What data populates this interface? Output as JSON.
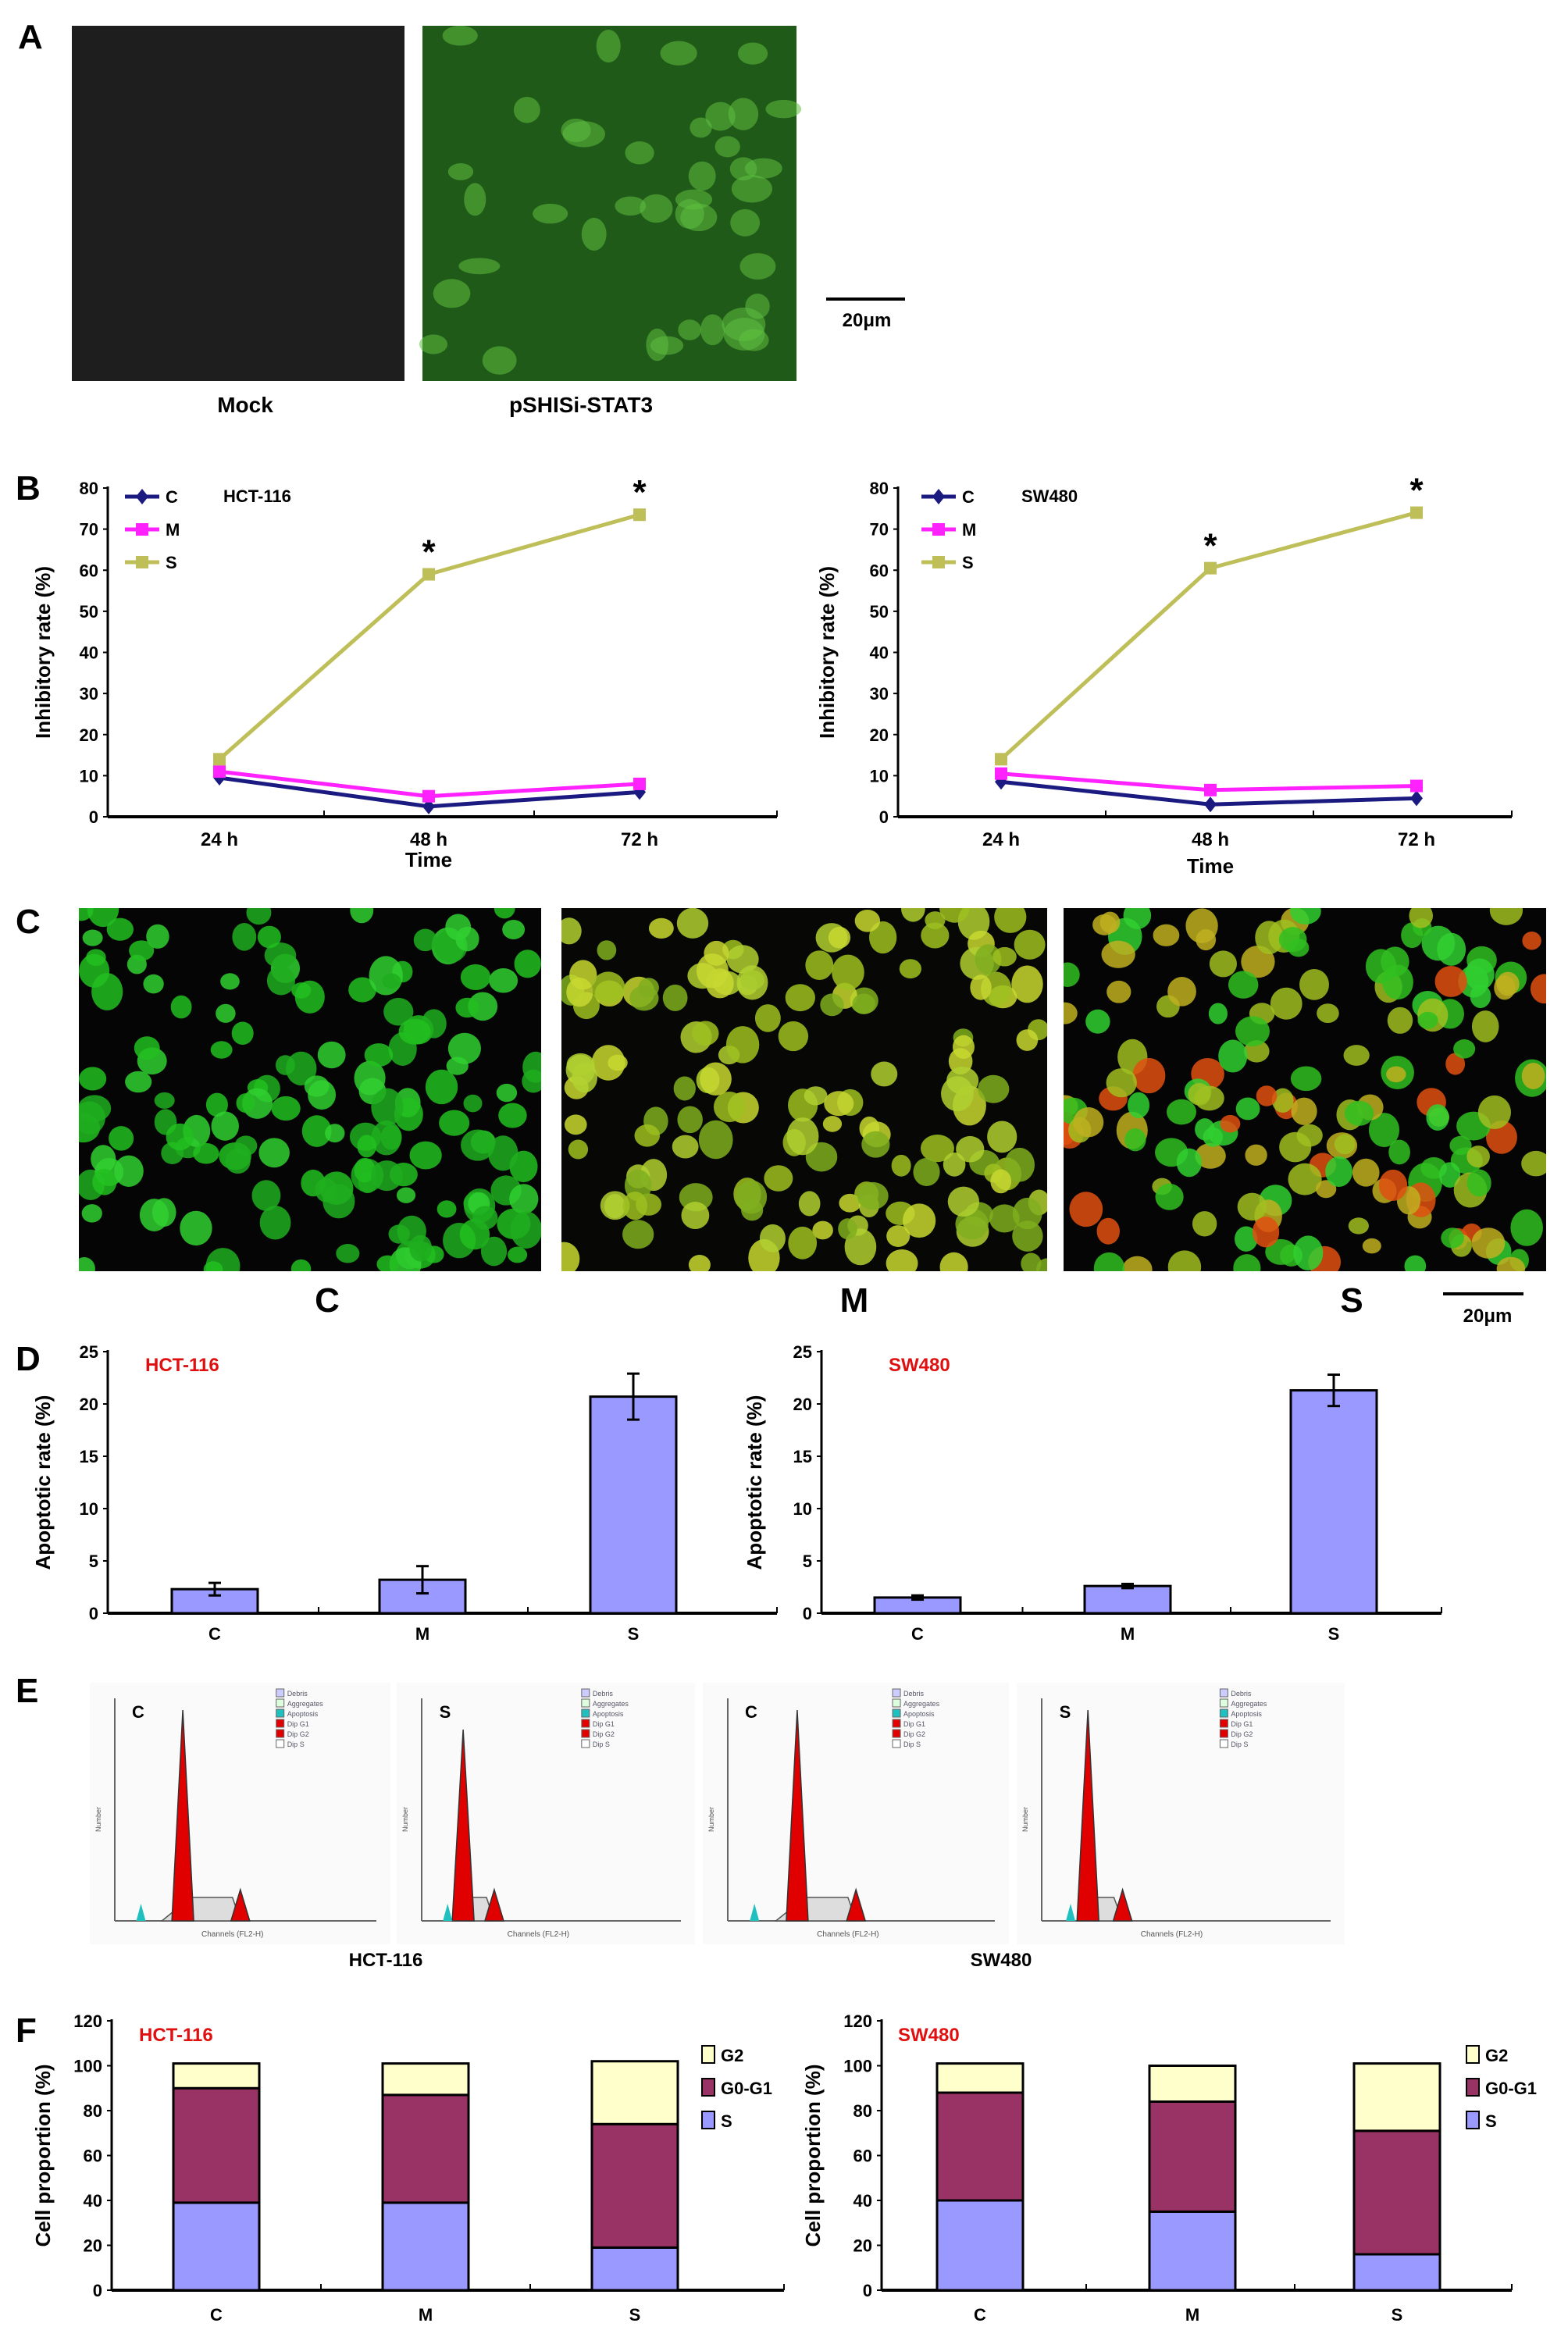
{
  "panel_labels": {
    "a": "A",
    "b": "B",
    "c": "C",
    "d": "D",
    "e": "E",
    "f": "F"
  },
  "panel_a": {
    "images": [
      "Mock",
      "pSHISi-STAT3"
    ],
    "scale_bar": "20μm"
  },
  "panel_c": {
    "images": [
      "C",
      "M",
      "S"
    ],
    "scale_bar": "20μm"
  },
  "colors": {
    "C": "#1a1a80",
    "M": "#ff22ff",
    "S": "#bfbf5a",
    "bar": "#9999ff",
    "g2": "#ffffcc",
    "g0g1": "#993366",
    "s_phase": "#9999ff",
    "red_title": "#e01010"
  },
  "chart_data": [
    {
      "id": "B-HCT116",
      "type": "line",
      "title": "HCT-116",
      "xlabel": "Time",
      "ylabel": "Inhibitory rate (%)",
      "categories": [
        "24 h",
        "48 h",
        "72 h"
      ],
      "ylim": [
        0,
        80
      ],
      "yticks": [
        0,
        10,
        20,
        30,
        40,
        50,
        60,
        70,
        80
      ],
      "legend": "top-left",
      "series": [
        {
          "name": "C",
          "values": [
            9.5,
            2.5,
            6.0
          ],
          "marker": "diamond"
        },
        {
          "name": "M",
          "values": [
            11.0,
            5.0,
            8.0
          ],
          "marker": "square"
        },
        {
          "name": "S",
          "values": [
            14.0,
            59.0,
            73.5
          ],
          "marker": "square"
        }
      ],
      "annotations": [
        {
          "category": "48 h",
          "text": "*"
        },
        {
          "category": "72 h",
          "text": "*"
        }
      ]
    },
    {
      "id": "B-SW480",
      "type": "line",
      "title": "SW480",
      "xlabel": "Time",
      "ylabel": "Inhibitory rate (%)",
      "categories": [
        "24 h",
        "48 h",
        "72 h"
      ],
      "ylim": [
        0,
        80
      ],
      "yticks": [
        0,
        10,
        20,
        30,
        40,
        50,
        60,
        70,
        80
      ],
      "legend": "top-left",
      "series": [
        {
          "name": "C",
          "values": [
            8.5,
            3.0,
            4.5
          ],
          "marker": "diamond"
        },
        {
          "name": "M",
          "values": [
            10.5,
            6.5,
            7.5
          ],
          "marker": "square"
        },
        {
          "name": "S",
          "values": [
            14.0,
            60.5,
            74.0
          ],
          "marker": "square"
        }
      ],
      "annotations": [
        {
          "category": "48 h",
          "text": "*"
        },
        {
          "category": "72 h",
          "text": "*"
        }
      ]
    },
    {
      "id": "D-HCT116",
      "type": "bar",
      "title": "HCT-116",
      "ylabel": "Apoptotic rate (%)",
      "categories": [
        "C",
        "M",
        "S"
      ],
      "values": [
        2.3,
        3.2,
        20.7
      ],
      "errors": [
        0.6,
        1.3,
        2.2
      ],
      "ylim": [
        0,
        25
      ],
      "yticks": [
        0,
        5,
        10,
        15,
        20,
        25
      ]
    },
    {
      "id": "D-SW480",
      "type": "bar",
      "title": "SW480",
      "ylabel": "Apoptotic rate (%)",
      "categories": [
        "C",
        "M",
        "S"
      ],
      "values": [
        1.5,
        2.6,
        21.3
      ],
      "errors": [
        0.2,
        0.2,
        1.5
      ],
      "ylim": [
        0,
        25
      ],
      "yticks": [
        0,
        5,
        10,
        15,
        20,
        25
      ]
    },
    {
      "id": "F-HCT116",
      "type": "bar",
      "stacked": true,
      "title": "HCT-116",
      "ylabel": "Cell proportion (%)",
      "categories": [
        "C",
        "M",
        "S"
      ],
      "ylim": [
        0,
        120
      ],
      "yticks": [
        0,
        20,
        40,
        60,
        80,
        100,
        120
      ],
      "legend": "right",
      "series": [
        {
          "name": "S",
          "values": [
            39,
            39,
            19
          ]
        },
        {
          "name": "G0-G1",
          "values": [
            51,
            48,
            55
          ]
        },
        {
          "name": "G2",
          "values": [
            11,
            14,
            28
          ]
        }
      ]
    },
    {
      "id": "F-SW480",
      "type": "bar",
      "stacked": true,
      "title": "SW480",
      "ylabel": "Cell proportion (%)",
      "categories": [
        "C",
        "M",
        "S"
      ],
      "ylim": [
        0,
        120
      ],
      "yticks": [
        0,
        20,
        40,
        60,
        80,
        100,
        120
      ],
      "legend": "right",
      "series": [
        {
          "name": "S",
          "values": [
            40,
            35,
            16
          ]
        },
        {
          "name": "G0-G1",
          "values": [
            48,
            49,
            55
          ]
        },
        {
          "name": "G2",
          "values": [
            13,
            16,
            30
          ]
        }
      ]
    }
  ],
  "panel_e": {
    "histograms": [
      {
        "label": "C",
        "group": "HCT-116"
      },
      {
        "label": "S",
        "group": "HCT-116"
      },
      {
        "label": "C",
        "group": "SW480"
      },
      {
        "label": "S",
        "group": "SW480"
      }
    ],
    "group_labels": [
      "HCT-116",
      "SW480"
    ],
    "legend": [
      "Debris",
      "Aggregates",
      "Apoptosis",
      "Dip G1",
      "Dip G2",
      "Dip S"
    ],
    "ylabel": "Number",
    "xlabel": "Channels (FL2-H)"
  }
}
